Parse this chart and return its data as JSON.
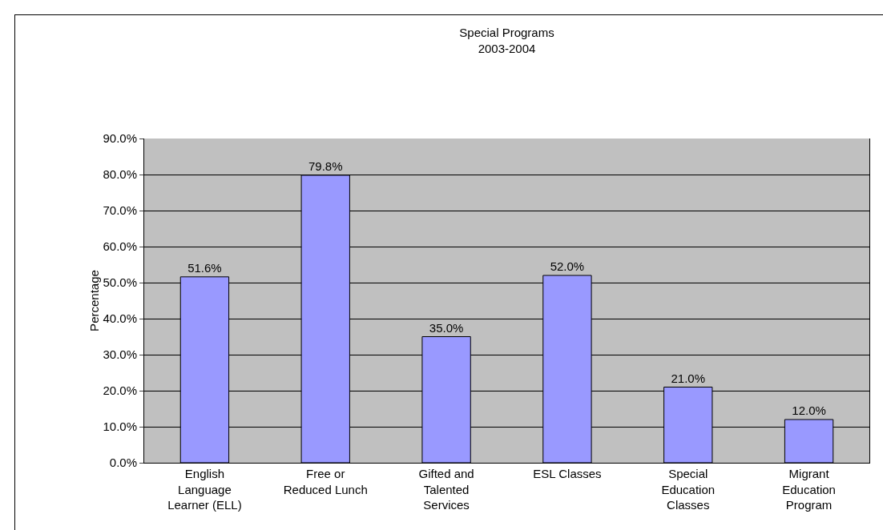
{
  "chart_data": {
    "type": "bar",
    "title": "Special Programs\n2003-2004",
    "ylabel": "Percentage",
    "categories": [
      "English Language Learner (ELL)",
      "Free or Reduced Lunch",
      "Gifted and Talented Services",
      "ESL Classes",
      "Special Education Classes",
      "Migrant Education Program"
    ],
    "values": [
      51.6,
      79.8,
      35.0,
      52.0,
      21.0,
      12.0
    ],
    "value_labels": [
      "51.6%",
      "79.8%",
      "35.0%",
      "52.0%",
      "21.0%",
      "12.0%"
    ],
    "color": "#9999ff",
    "ylim": [
      0,
      90
    ],
    "yticks": [
      {
        "value": 0,
        "label": "0.0%"
      },
      {
        "value": 10,
        "label": "10.0%"
      },
      {
        "value": 20,
        "label": "20.0%"
      },
      {
        "value": 30,
        "label": "30.0%"
      },
      {
        "value": 40,
        "label": "40.0%"
      },
      {
        "value": 50,
        "label": "50.0%"
      },
      {
        "value": 60,
        "label": "60.0%"
      },
      {
        "value": 70,
        "label": "70.0%"
      },
      {
        "value": 80,
        "label": "80.0%"
      },
      {
        "value": 90,
        "label": "90.0%"
      }
    ],
    "grid": "y",
    "legend": false
  }
}
